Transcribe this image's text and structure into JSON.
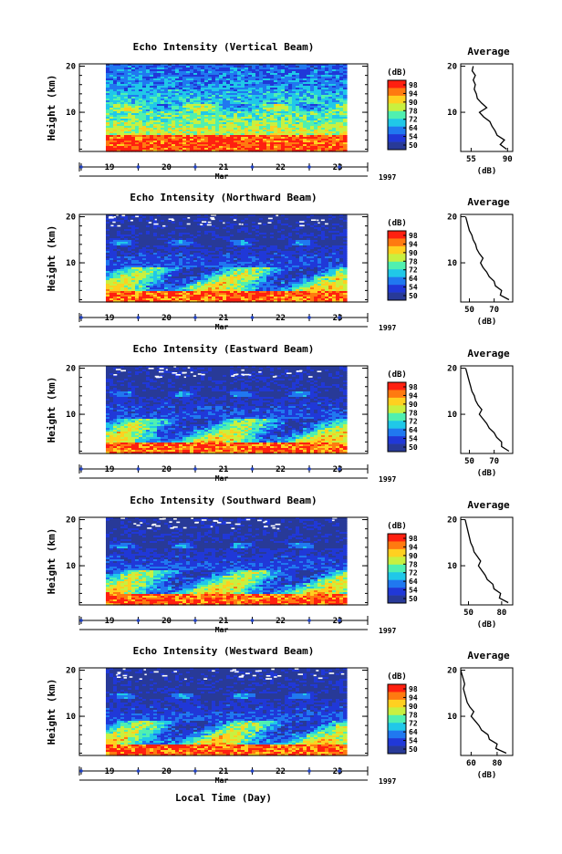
{
  "chart_data": {
    "type": "heatmap",
    "x_axis": {
      "ticks": [
        "19",
        "20",
        "21",
        "22",
        "23"
      ],
      "month_label": "Mar",
      "year_label": "1997",
      "label": "Local Time (Day)"
    },
    "y_axis": {
      "label": "Height (km)",
      "ticks": [
        "20",
        "10"
      ],
      "ylim": [
        1.5,
        20.5
      ]
    },
    "colorbar": {
      "unit_label": "(dB)",
      "tick_labels": [
        "98",
        "94",
        "90",
        "78",
        "72",
        "64",
        "54",
        "50"
      ],
      "colors": [
        "#ff2010",
        "#ff7a10",
        "#ffd020",
        "#c8f040",
        "#50f0b0",
        "#20c8e8",
        "#2078f0",
        "#2038d8",
        "#283a98"
      ]
    },
    "profile_title": "Average",
    "profile_xlabel": "(dB)",
    "panels": [
      {
        "title": "Echo Intensity (Vertical Beam)",
        "profile_ticks": [
          "55",
          "90"
        ],
        "profile_xlim": [
          45,
          95
        ],
        "profile": {
          "height": [
            2,
            3,
            4,
            5,
            6,
            7,
            8,
            9,
            10,
            11,
            12,
            13,
            14,
            15,
            16,
            17,
            18,
            19,
            20
          ],
          "value": [
            89,
            83,
            87,
            80,
            78,
            75,
            73,
            67,
            63,
            70,
            65,
            61,
            60,
            58,
            59,
            57,
            59,
            56,
            57
          ]
        }
      },
      {
        "title": "Echo Intensity (Northward Beam)",
        "profile_ticks": [
          "50",
          "70"
        ],
        "profile_xlim": [
          43,
          85
        ],
        "profile": {
          "height": [
            2,
            3,
            4,
            5,
            6,
            7,
            8,
            9,
            10,
            11,
            12,
            13,
            14,
            15,
            16,
            17,
            18,
            19,
            20
          ],
          "value": [
            82,
            75,
            76,
            71,
            70,
            66,
            64,
            61,
            59,
            61,
            58,
            56,
            55,
            53,
            52,
            50,
            49,
            48,
            47
          ]
        }
      },
      {
        "title": "Echo Intensity (Eastward Beam)",
        "profile_ticks": [
          "50",
          "70"
        ],
        "profile_xlim": [
          43,
          85
        ],
        "profile": {
          "height": [
            2,
            3,
            4,
            5,
            6,
            7,
            8,
            9,
            10,
            11,
            12,
            13,
            14,
            15,
            16,
            17,
            18,
            19,
            20
          ],
          "value": [
            82,
            76,
            76,
            72,
            70,
            66,
            64,
            61,
            58,
            60,
            57,
            55,
            54,
            52,
            51,
            50,
            49,
            48,
            47
          ]
        }
      },
      {
        "title": "Echo Intensity (Southward Beam)",
        "profile_ticks": [
          "50",
          "80"
        ],
        "profile_xlim": [
          43,
          90
        ],
        "profile": {
          "height": [
            2,
            3,
            4,
            5,
            6,
            7,
            8,
            9,
            10,
            11,
            12,
            13,
            14,
            15,
            16,
            17,
            18,
            19,
            20
          ],
          "value": [
            86,
            78,
            79,
            73,
            72,
            67,
            65,
            62,
            59,
            61,
            58,
            55,
            54,
            52,
            51,
            50,
            49,
            48,
            47
          ]
        }
      },
      {
        "title": "Echo Intensity (Westward Beam)",
        "profile_ticks": [
          "60",
          "80"
        ],
        "profile_xlim": [
          52,
          92
        ],
        "profile": {
          "height": [
            2,
            3,
            4,
            5,
            6,
            7,
            8,
            9,
            10,
            11,
            12,
            13,
            14,
            15,
            16,
            17,
            18,
            19,
            20
          ],
          "value": [
            87,
            79,
            80,
            74,
            73,
            68,
            66,
            63,
            60,
            62,
            59,
            57,
            56,
            55,
            54,
            55,
            54,
            53,
            52
          ]
        }
      }
    ]
  }
}
